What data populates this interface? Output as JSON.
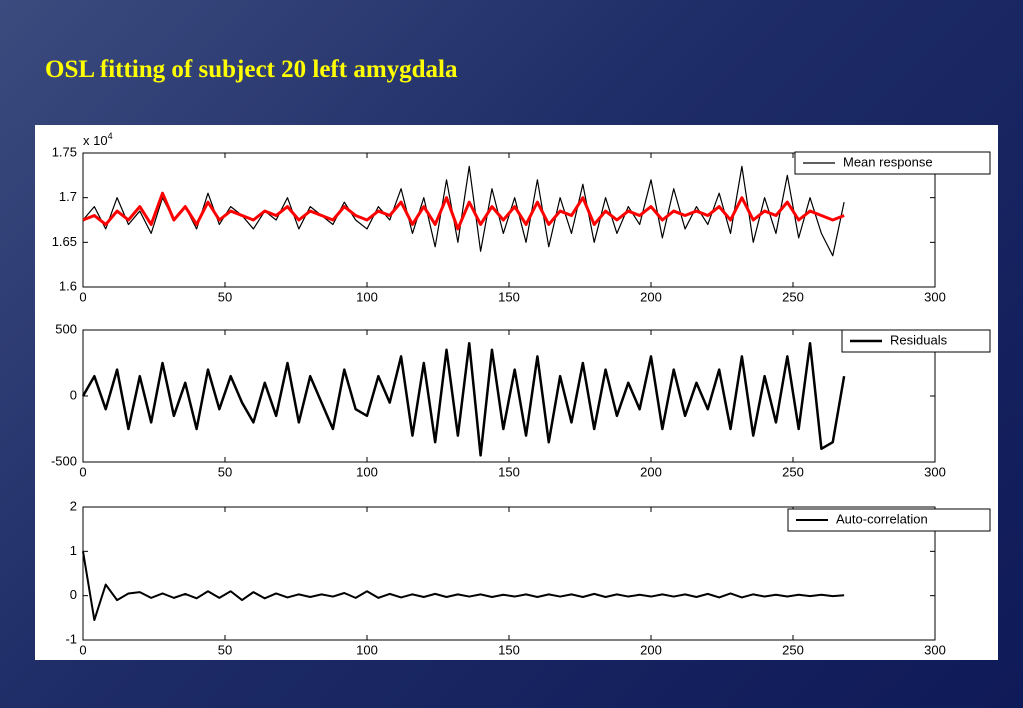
{
  "title": "OSL fitting of subject 20 left amygdala",
  "chart_data": [
    {
      "type": "line",
      "y_multiplier": {
        "base": "x 10",
        "exponent": "4"
      },
      "x": [
        0,
        4,
        8,
        12,
        16,
        20,
        24,
        28,
        32,
        36,
        40,
        44,
        48,
        52,
        56,
        60,
        64,
        68,
        72,
        76,
        80,
        84,
        88,
        92,
        96,
        100,
        104,
        108,
        112,
        116,
        120,
        124,
        128,
        132,
        136,
        140,
        144,
        148,
        152,
        156,
        160,
        164,
        168,
        172,
        176,
        180,
        184,
        188,
        192,
        196,
        200,
        204,
        208,
        212,
        216,
        220,
        224,
        228,
        232,
        236,
        240,
        244,
        248,
        252,
        256,
        260,
        264,
        268
      ],
      "series": [
        {
          "name": "Mean response",
          "color": "#000000",
          "width": 1.2,
          "values": [
            1.675,
            1.69,
            1.665,
            1.7,
            1.67,
            1.685,
            1.66,
            1.7,
            1.675,
            1.69,
            1.665,
            1.705,
            1.67,
            1.69,
            1.68,
            1.665,
            1.685,
            1.675,
            1.7,
            1.665,
            1.69,
            1.68,
            1.67,
            1.695,
            1.675,
            1.665,
            1.69,
            1.675,
            1.71,
            1.66,
            1.7,
            1.645,
            1.72,
            1.65,
            1.735,
            1.64,
            1.71,
            1.66,
            1.7,
            1.65,
            1.72,
            1.645,
            1.7,
            1.66,
            1.715,
            1.65,
            1.7,
            1.66,
            1.69,
            1.67,
            1.72,
            1.655,
            1.71,
            1.665,
            1.69,
            1.67,
            1.705,
            1.66,
            1.735,
            1.65,
            1.7,
            1.66,
            1.725,
            1.655,
            1.7,
            1.66,
            1.635,
            1.695
          ]
        },
        {
          "color": "#ff0000",
          "width": 3,
          "values": [
            1.675,
            1.68,
            1.67,
            1.685,
            1.675,
            1.69,
            1.67,
            1.705,
            1.675,
            1.69,
            1.67,
            1.695,
            1.675,
            1.685,
            1.68,
            1.675,
            1.685,
            1.68,
            1.69,
            1.675,
            1.685,
            1.68,
            1.675,
            1.69,
            1.68,
            1.675,
            1.685,
            1.68,
            1.695,
            1.67,
            1.69,
            1.67,
            1.7,
            1.665,
            1.695,
            1.67,
            1.69,
            1.675,
            1.69,
            1.67,
            1.695,
            1.67,
            1.685,
            1.68,
            1.7,
            1.67,
            1.685,
            1.675,
            1.685,
            1.68,
            1.69,
            1.675,
            1.685,
            1.68,
            1.685,
            1.68,
            1.69,
            1.675,
            1.7,
            1.675,
            1.685,
            1.68,
            1.695,
            1.675,
            1.685,
            1.68,
            1.675,
            1.68
          ]
        }
      ],
      "xlim": [
        0,
        300
      ],
      "xticks": [
        0,
        50,
        100,
        150,
        200,
        250,
        300
      ],
      "ylim": [
        1.6,
        1.75
      ],
      "yticks": [
        1.6,
        1.65,
        1.7,
        1.75
      ],
      "legend": "upper right"
    },
    {
      "type": "line",
      "x": [
        0,
        4,
        8,
        12,
        16,
        20,
        24,
        28,
        32,
        36,
        40,
        44,
        48,
        52,
        56,
        60,
        64,
        68,
        72,
        76,
        80,
        84,
        88,
        92,
        96,
        100,
        104,
        108,
        112,
        116,
        120,
        124,
        128,
        132,
        136,
        140,
        144,
        148,
        152,
        156,
        160,
        164,
        168,
        172,
        176,
        180,
        184,
        188,
        192,
        196,
        200,
        204,
        208,
        212,
        216,
        220,
        224,
        228,
        232,
        236,
        240,
        244,
        248,
        252,
        256,
        260,
        264,
        268
      ],
      "series": [
        {
          "name": "Residuals",
          "color": "#000000",
          "width": 2.5,
          "values": [
            0,
            150,
            -100,
            200,
            -250,
            150,
            -200,
            250,
            -150,
            100,
            -250,
            200,
            -100,
            150,
            -50,
            -200,
            100,
            -150,
            250,
            -200,
            150,
            -50,
            -250,
            200,
            -100,
            -150,
            150,
            -50,
            300,
            -300,
            250,
            -350,
            350,
            -300,
            400,
            -450,
            350,
            -250,
            200,
            -300,
            300,
            -350,
            150,
            -200,
            250,
            -250,
            200,
            -150,
            100,
            -100,
            300,
            -250,
            200,
            -150,
            100,
            -100,
            200,
            -250,
            300,
            -300,
            150,
            -200,
            300,
            -250,
            400,
            -400,
            -350,
            150
          ]
        }
      ],
      "xlim": [
        0,
        300
      ],
      "xticks": [
        0,
        50,
        100,
        150,
        200,
        250,
        300
      ],
      "ylim": [
        -500,
        500
      ],
      "yticks": [
        -500,
        0,
        500
      ],
      "legend": "upper right"
    },
    {
      "type": "line",
      "x": [
        0,
        4,
        8,
        12,
        16,
        20,
        24,
        28,
        32,
        36,
        40,
        44,
        48,
        52,
        56,
        60,
        64,
        68,
        72,
        76,
        80,
        84,
        88,
        92,
        96,
        100,
        104,
        108,
        112,
        116,
        120,
        124,
        128,
        132,
        136,
        140,
        144,
        148,
        152,
        156,
        160,
        164,
        168,
        172,
        176,
        180,
        184,
        188,
        192,
        196,
        200,
        204,
        208,
        212,
        216,
        220,
        224,
        228,
        232,
        236,
        240,
        244,
        248,
        252,
        256,
        260,
        264,
        268
      ],
      "series": [
        {
          "name": "Auto-correlation",
          "color": "#000000",
          "width": 2,
          "values": [
            1,
            -0.55,
            0.25,
            -0.1,
            0.05,
            0.08,
            -0.05,
            0.05,
            -0.05,
            0.04,
            -0.06,
            0.1,
            -0.05,
            0.1,
            -0.1,
            0.08,
            -0.06,
            0.05,
            -0.04,
            0.03,
            -0.03,
            0.03,
            -0.02,
            0.06,
            -0.05,
            0.1,
            -0.05,
            0.04,
            -0.04,
            0.03,
            -0.03,
            0.04,
            -0.03,
            0.03,
            -0.02,
            0.03,
            -0.03,
            0.02,
            -0.02,
            0.03,
            -0.03,
            0.03,
            -0.02,
            0.03,
            -0.03,
            0.04,
            -0.03,
            0.03,
            -0.02,
            0.02,
            -0.02,
            0.03,
            -0.02,
            0.03,
            -0.03,
            0.04,
            -0.04,
            0.05,
            -0.04,
            0.03,
            -0.02,
            0.02,
            -0.02,
            0.02,
            -0.01,
            0.02,
            -0.01,
            0.01
          ]
        }
      ],
      "xlim": [
        0,
        300
      ],
      "xticks": [
        0,
        50,
        100,
        150,
        200,
        250,
        300
      ],
      "ylim": [
        -1,
        2
      ],
      "yticks": [
        -1,
        0,
        1,
        2
      ],
      "legend": "upper right"
    }
  ]
}
